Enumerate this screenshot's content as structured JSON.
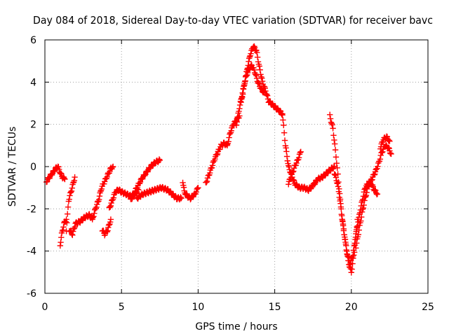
{
  "chart_data": {
    "type": "scatter",
    "title": "Day 084 of 2018, Sidereal Day-to-day VTEC variation (SDTVAR) for receiver bavc",
    "xlabel": "GPS time / hours",
    "ylabel": "SDTVAR / TECUs",
    "xlim": [
      0,
      25
    ],
    "ylim": [
      -6,
      6
    ],
    "xticks": [
      "0",
      "5",
      "10",
      "15",
      "20",
      "25"
    ],
    "yticks": [
      "-6",
      "-4",
      "-2",
      "0",
      "2",
      "4",
      "6"
    ],
    "grid": true,
    "marker": "+",
    "color": "#ff0000",
    "series": [
      {
        "x": [
          0.1,
          0.3,
          0.5,
          0.7,
          0.85,
          1.0,
          1.15,
          1.3
        ],
        "y": [
          -0.7,
          -0.5,
          -0.3,
          -0.1,
          0.0,
          -0.3,
          -0.5,
          -0.6
        ]
      },
      {
        "x": [
          1.0,
          1.1,
          1.25,
          1.4
        ],
        "y": [
          -3.7,
          -3.2,
          -2.7,
          -2.5
        ]
      },
      {
        "x": [
          1.4,
          1.55,
          1.7,
          1.85,
          1.95
        ],
        "y": [
          -3.0,
          -1.6,
          -1.2,
          -0.8,
          -0.5
        ]
      },
      {
        "x": [
          1.6,
          1.8,
          2.0,
          2.3,
          2.6,
          2.9,
          3.1
        ],
        "y": [
          -3.0,
          -3.2,
          -2.7,
          -2.6,
          -2.4,
          -2.3,
          -2.5
        ]
      },
      {
        "x": [
          3.1,
          3.3,
          3.5,
          3.7,
          3.9,
          4.1,
          4.3,
          4.45
        ],
        "y": [
          -2.5,
          -2.0,
          -1.6,
          -1.0,
          -0.7,
          -0.4,
          -0.1,
          0.0
        ]
      },
      {
        "x": [
          3.75,
          3.9,
          4.1,
          4.3
        ],
        "y": [
          -3.0,
          -3.2,
          -3.0,
          -2.5
        ]
      },
      {
        "x": [
          4.2,
          4.4,
          4.6,
          4.8,
          5.0,
          5.3,
          5.6,
          5.9,
          6.1
        ],
        "y": [
          -2.0,
          -1.6,
          -1.2,
          -1.1,
          -1.2,
          -1.3,
          -1.4,
          -1.3,
          -1.1
        ]
      },
      {
        "x": [
          5.6,
          5.8,
          6.0,
          6.3,
          6.6,
          6.9,
          7.2,
          7.5
        ],
        "y": [
          -1.6,
          -1.3,
          -1.0,
          -0.6,
          -0.3,
          0.0,
          0.2,
          0.3
        ]
      },
      {
        "x": [
          6.0,
          6.4,
          6.8,
          7.2,
          7.6,
          8.0,
          8.3,
          8.6,
          8.9
        ],
        "y": [
          -1.5,
          -1.3,
          -1.2,
          -1.1,
          -1.0,
          -1.1,
          -1.3,
          -1.5,
          -1.5
        ]
      },
      {
        "x": [
          9.0,
          9.1,
          9.3,
          9.5,
          9.8,
          10.0
        ],
        "y": [
          -0.7,
          -1.2,
          -1.4,
          -1.5,
          -1.3,
          -1.0
        ]
      },
      {
        "x": [
          10.5,
          10.7,
          10.9,
          11.1,
          11.3,
          11.5,
          11.7,
          11.9
        ],
        "y": [
          -0.8,
          -0.4,
          0.0,
          0.4,
          0.7,
          1.0,
          1.1,
          1.0
        ]
      },
      {
        "x": [
          11.9,
          12.1,
          12.3,
          12.5,
          12.7
        ],
        "y": [
          1.0,
          1.6,
          2.0,
          2.2,
          2.4
        ]
      },
      {
        "x": [
          12.5,
          12.7,
          12.9,
          13.1,
          13.3,
          13.5,
          13.7,
          13.9,
          14.1,
          14.3
        ],
        "y": [
          2.0,
          2.8,
          3.5,
          4.2,
          4.6,
          4.8,
          4.5,
          4.0,
          3.7,
          3.5
        ]
      },
      {
        "x": [
          12.8,
          13.0,
          13.2,
          13.4,
          13.6,
          13.8,
          14.0,
          14.2,
          14.4,
          14.6,
          14.9,
          15.2,
          15.5
        ],
        "y": [
          3.0,
          3.8,
          4.6,
          5.3,
          5.7,
          5.5,
          4.7,
          4.0,
          3.6,
          3.1,
          2.9,
          2.7,
          2.5
        ]
      },
      {
        "x": [
          15.5,
          15.7,
          15.9,
          16.1,
          16.3,
          16.6,
          16.9,
          17.2,
          17.5
        ],
        "y": [
          2.5,
          1.0,
          0.0,
          -0.4,
          -0.8,
          -1.0,
          -1.0,
          -1.1,
          -0.9
        ]
      },
      {
        "x": [
          15.9,
          16.1,
          16.3,
          16.5,
          16.7
        ],
        "y": [
          -0.8,
          -0.4,
          0.0,
          0.3,
          0.7
        ]
      },
      {
        "x": [
          17.5,
          17.8,
          18.1,
          18.4,
          18.7,
          18.9
        ],
        "y": [
          -0.9,
          -0.6,
          -0.5,
          -0.3,
          -0.1,
          0.0
        ]
      },
      {
        "x": [
          18.6,
          18.8,
          19.0,
          19.2,
          19.4,
          19.6,
          19.8,
          20.0,
          20.2,
          20.4
        ],
        "y": [
          2.4,
          1.8,
          0.5,
          -1.0,
          -2.5,
          -3.5,
          -4.5,
          -5.0,
          -4.0,
          -2.5
        ]
      },
      {
        "x": [
          18.9,
          19.1,
          19.3,
          19.5,
          19.7,
          19.9,
          20.1,
          20.3,
          20.6,
          20.9,
          21.2
        ],
        "y": [
          -0.3,
          -0.8,
          -1.8,
          -3.0,
          -4.0,
          -4.6,
          -4.2,
          -3.2,
          -2.0,
          -1.0,
          -0.7
        ]
      },
      {
        "x": [
          20.3,
          20.5,
          20.7,
          20.9,
          21.1,
          21.3,
          21.5,
          21.7
        ],
        "y": [
          -3.8,
          -3.0,
          -2.2,
          -1.5,
          -0.9,
          -0.8,
          -1.1,
          -1.3
        ]
      },
      {
        "x": [
          21.2,
          21.4,
          21.6,
          21.8,
          22.0,
          22.2,
          22.4,
          22.6
        ],
        "y": [
          -0.8,
          -0.5,
          -0.2,
          0.2,
          0.7,
          1.0,
          0.9,
          0.6
        ]
      },
      {
        "x": [
          21.9,
          22.1,
          22.3,
          22.5
        ],
        "y": [
          0.9,
          1.3,
          1.4,
          1.2
        ]
      }
    ]
  }
}
